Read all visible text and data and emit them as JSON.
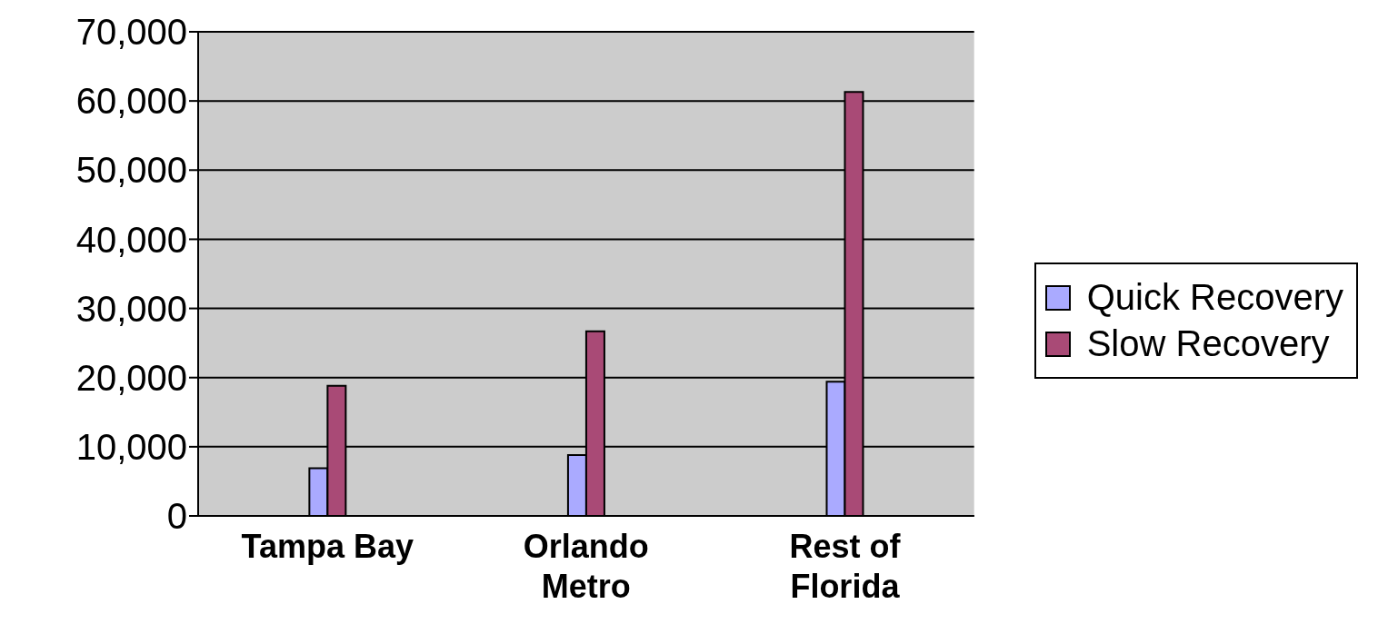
{
  "chart_data": {
    "type": "bar",
    "categories": [
      "Tampa Bay",
      "Orlando Metro",
      "Rest of Florida"
    ],
    "series": [
      {
        "name": "Quick Recovery",
        "color": "#aaaaff",
        "values": [
          6900,
          8800,
          19400
        ]
      },
      {
        "name": "Slow Recovery",
        "color": "#a94a76",
        "values": [
          18800,
          26700,
          61300
        ]
      }
    ],
    "ylim": [
      0,
      70000
    ],
    "yticks": [
      0,
      {
        "value": 10000,
        "label": "10,000"
      },
      {
        "value": 20000,
        "label": "20,000"
      },
      {
        "value": 30000,
        "label": "30,000"
      },
      {
        "value": 40000,
        "label": "40,000"
      },
      {
        "value": 50000,
        "label": "50,000"
      },
      {
        "value": 60000,
        "label": "60,000"
      },
      {
        "value": 70000,
        "label": "70,000"
      }
    ],
    "grid": "y",
    "legend": "right"
  }
}
